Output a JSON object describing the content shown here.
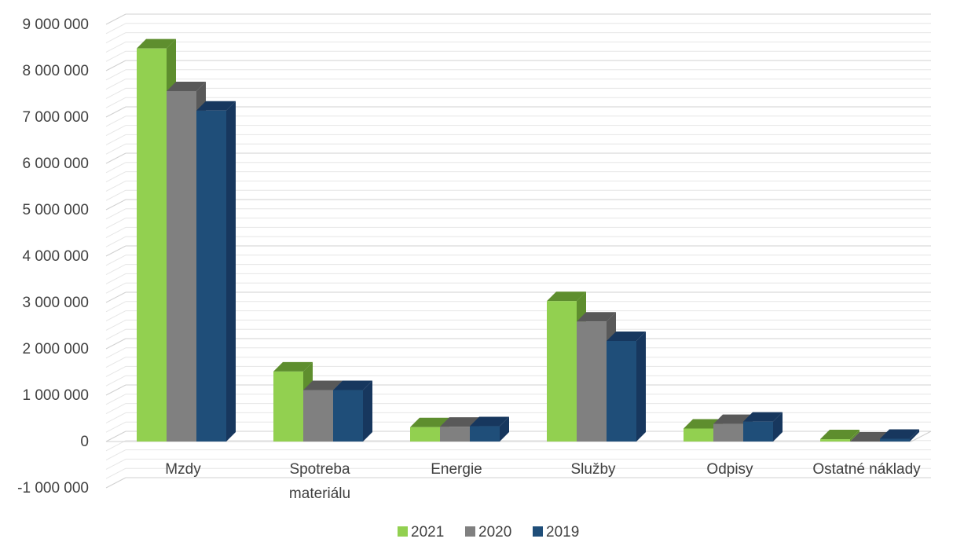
{
  "chart_data": {
    "type": "bar",
    "categories": [
      "Mzdy",
      "Spotreba materiálu",
      "Energie",
      "Služby",
      "Odpisy",
      "Ostatné náklady"
    ],
    "category_lines": [
      [
        "Mzdy"
      ],
      [
        "Spotreba",
        "materiálu"
      ],
      [
        "Energie"
      ],
      [
        "Služby"
      ],
      [
        "Odpisy"
      ],
      [
        "Ostatné náklady"
      ]
    ],
    "series": [
      {
        "name": "2021",
        "values": [
          8480000,
          1510000,
          310000,
          3030000,
          280000,
          50000
        ],
        "color": "#92D050",
        "top_color": "#5E8E2E",
        "side_color": "#5E8E2E"
      },
      {
        "name": "2020",
        "values": [
          7560000,
          1110000,
          320000,
          2590000,
          380000,
          0
        ],
        "color": "#808080",
        "top_color": "#595959",
        "side_color": "#595959"
      },
      {
        "name": "2019",
        "values": [
          7140000,
          1110000,
          330000,
          2170000,
          430000,
          60000
        ],
        "color": "#1F4E79",
        "top_color": "#17375E",
        "side_color": "#17375E"
      }
    ],
    "y_ticks": [
      "9 000 000",
      "8 000 000",
      "7 000 000",
      "6 000 000",
      "5 000 000",
      "4 000 000",
      "3 000 000",
      "2 000 000",
      "1 000 000",
      "0",
      "-1 000 000"
    ],
    "ylim": [
      -1000000,
      9000000
    ],
    "legend_position": "bottom",
    "grid": true,
    "three_d": true
  }
}
